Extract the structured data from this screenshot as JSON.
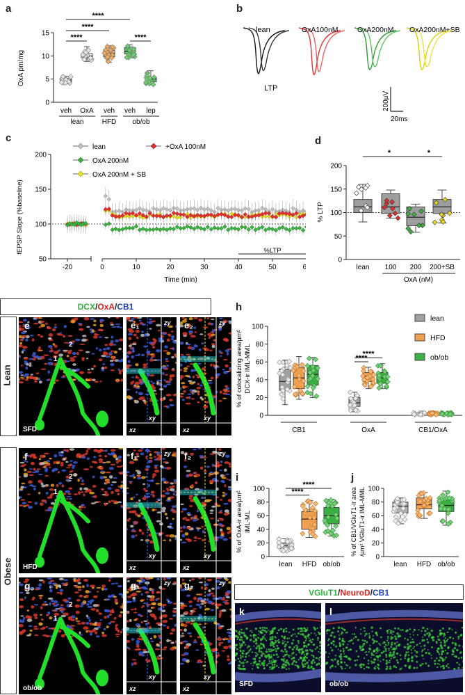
{
  "panels": {
    "a": "a",
    "b": "b",
    "c": "c",
    "d": "d",
    "e": "e",
    "f": "f",
    "g": "g",
    "h": "h",
    "i": "i",
    "j": "j",
    "k": "k",
    "l": "l"
  },
  "micrographs": {
    "e": "e",
    "e1": "e₁",
    "e2": "e₂",
    "f": "f",
    "f1": "f₁",
    "f2": "f₂",
    "g": "g",
    "g1": "g₁",
    "g2": "g₂",
    "zy": "zy",
    "xy": "xy",
    "xz": "xz",
    "sfd": "SFD",
    "hfd": "HFD",
    "obob": "ob/ob",
    "arrow1": "1",
    "arrow2": "2"
  },
  "stain_titles": {
    "dcx": "DCX",
    "oxa": "OxA",
    "cb1": "CB1",
    "sep": "/",
    "vglut1": "VGluT1",
    "neurod": "NeuroD"
  },
  "side_labels": {
    "lean": "Lean",
    "obese": "Obese"
  },
  "colors": {
    "lean": "#a0a0a0",
    "hfd": "#f0a050",
    "obob": "#3cb043",
    "oxa100": "#e03030",
    "oxa200": "#3cb043",
    "oxa200sb": "#e8e820",
    "trace_lean": "#111111"
  },
  "chart_data": [
    {
      "id": "a",
      "type": "box",
      "ylabel": "OxA pm/mg",
      "ylim": [
        0,
        15
      ],
      "yticks": [
        0,
        5,
        10,
        15
      ],
      "categories": [
        "veh",
        "OxA",
        "veh",
        "veh",
        "lep"
      ],
      "groups": [
        "lean",
        "HFD",
        "ob/ob"
      ],
      "boxes": [
        {
          "min": 4.0,
          "q1": 4.4,
          "median": 4.8,
          "q3": 5.2,
          "max": 5.6
        },
        {
          "min": 8.8,
          "q1": 9.6,
          "median": 10.0,
          "q3": 10.5,
          "max": 12.0
        },
        {
          "min": 8.6,
          "q1": 9.8,
          "median": 10.5,
          "q3": 11.2,
          "max": 12.2
        },
        {
          "min": 9.6,
          "q1": 10.4,
          "median": 11.0,
          "q3": 11.8,
          "max": 12.4
        },
        {
          "min": 3.8,
          "q1": 4.4,
          "median": 5.0,
          "q3": 5.4,
          "max": 6.8
        }
      ],
      "significance": [
        "****",
        "****",
        "****",
        "****"
      ]
    },
    {
      "id": "b",
      "type": "traces",
      "labels": [
        "lean",
        "OxA100nM",
        "OxA200nM",
        "OxA200nM+SB"
      ],
      "ltp_label": "LTP",
      "scale_y": "200µV",
      "scale_x": "20ms"
    },
    {
      "id": "c",
      "type": "line",
      "xlabel": "Time (min)",
      "ylabel": "fEPSP Slope (%baseline)",
      "xlim": [
        -25,
        60
      ],
      "ylim": [
        50,
        200
      ],
      "xticks": [
        -20,
        0,
        10,
        20,
        30,
        40,
        50,
        60
      ],
      "yticks": [
        50,
        100,
        150,
        200
      ],
      "series": [
        {
          "name": "lean",
          "baseline": 100,
          "post": 120
        },
        {
          "name": "+OxA 100nM",
          "baseline": 100,
          "post": 113
        },
        {
          "name": "OxA 200nM",
          "baseline": 100,
          "post": 94
        },
        {
          "name": "OxA 200nM + SB",
          "baseline": 100,
          "post": 112
        }
      ],
      "annotation": "%LTP"
    },
    {
      "id": "d",
      "type": "box",
      "ylabel": "% LTP",
      "ylim": [
        0,
        200
      ],
      "yticks": [
        0,
        50,
        100,
        150,
        200
      ],
      "categories": [
        "lean",
        "100",
        "200",
        "200+SB"
      ],
      "group_label": "OxA (nM)",
      "boxes": [
        {
          "min": 80,
          "q1": 100,
          "median": 112,
          "q3": 128,
          "max": 160
        },
        {
          "min": 88,
          "q1": 98,
          "median": 112,
          "q3": 140,
          "max": 148
        },
        {
          "min": 58,
          "q1": 72,
          "median": 90,
          "q3": 112,
          "max": 118
        },
        {
          "min": 78,
          "q1": 98,
          "median": 112,
          "q3": 128,
          "max": 148
        }
      ],
      "significance": [
        "*",
        "*"
      ]
    },
    {
      "id": "h",
      "type": "box",
      "ylabel": "% of colocalizing area/µm² DCX-ir IML-MML",
      "ylim": [
        0,
        100
      ],
      "yticks": [
        0,
        20,
        40,
        60,
        80,
        100
      ],
      "groups": [
        "CB1",
        "OxA",
        "CB1/OxA"
      ],
      "series": [
        {
          "name": "lean",
          "boxes": [
            {
              "min": 12,
              "q1": 28,
              "median": 38,
              "q3": 52,
              "max": 62
            },
            {
              "min": 4,
              "q1": 10,
              "median": 14,
              "q3": 20,
              "max": 26
            },
            {
              "min": 0.5,
              "q1": 1.2,
              "median": 2,
              "q3": 2.5,
              "max": 3
            }
          ]
        },
        {
          "name": "HFD",
          "boxes": [
            {
              "min": 18,
              "q1": 30,
              "median": 42,
              "q3": 54,
              "max": 66
            },
            {
              "min": 30,
              "q1": 38,
              "median": 44,
              "q3": 48,
              "max": 54
            },
            {
              "min": 0.5,
              "q1": 1.2,
              "median": 2,
              "q3": 2.5,
              "max": 3
            }
          ]
        },
        {
          "name": "ob/ob",
          "boxes": [
            {
              "min": 20,
              "q1": 34,
              "median": 46,
              "q3": 56,
              "max": 65
            },
            {
              "min": 30,
              "q1": 36,
              "median": 42,
              "q3": 48,
              "max": 58
            },
            {
              "min": 0.5,
              "q1": 1.2,
              "median": 2,
              "q3": 2.5,
              "max": 3
            }
          ]
        }
      ],
      "significance": [
        "****",
        "****"
      ]
    },
    {
      "id": "i",
      "type": "box",
      "ylabel": "% of OxA-ir area/µm² IML-ML",
      "ylim": [
        0,
        100
      ],
      "yticks": [
        0,
        20,
        40,
        60,
        80,
        100
      ],
      "categories": [
        "lean",
        "HFD",
        "ob/ob"
      ],
      "boxes": [
        {
          "min": 8,
          "q1": 12,
          "median": 16,
          "q3": 20,
          "max": 26
        },
        {
          "min": 28,
          "q1": 40,
          "median": 55,
          "q3": 66,
          "max": 82
        },
        {
          "min": 30,
          "q1": 48,
          "median": 60,
          "q3": 72,
          "max": 84
        }
      ],
      "significance": [
        "****",
        "****"
      ]
    },
    {
      "id": "j",
      "type": "box",
      "ylabel": "% of CB1/VGluT1-ir area /µm² VGluT1-ir IML-MML",
      "ylim": [
        0,
        100
      ],
      "yticks": [
        0,
        20,
        40,
        60,
        80,
        100
      ],
      "categories": [
        "lean",
        "HFD",
        "ob/ob"
      ],
      "boxes": [
        {
          "min": 48,
          "q1": 64,
          "median": 74,
          "q3": 80,
          "max": 86
        },
        {
          "min": 56,
          "q1": 70,
          "median": 76,
          "q3": 86,
          "max": 94
        },
        {
          "min": 46,
          "q1": 66,
          "median": 75,
          "q3": 85,
          "max": 96
        }
      ]
    }
  ]
}
